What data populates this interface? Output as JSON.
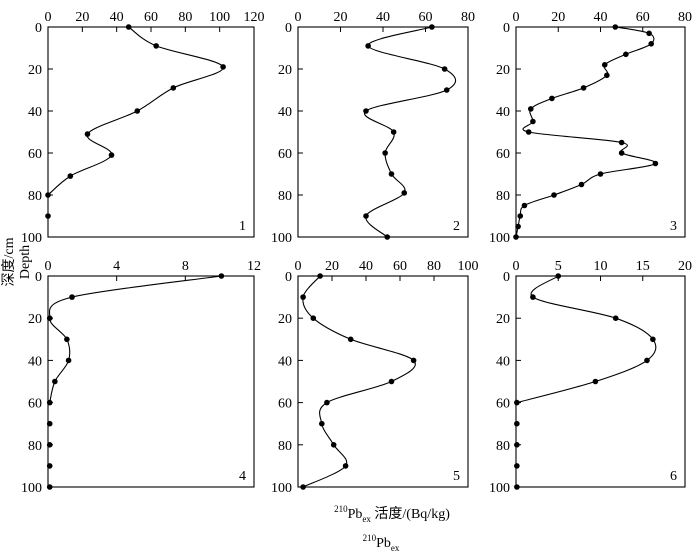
{
  "figure": {
    "y_axis_title": "深度/cm",
    "y_axis_title_en": "Depth",
    "x_axis_title": {
      "superscript": "210",
      "base": "Pb",
      "subscript": "ex",
      "suffix": " 活度/(Bq/kg)"
    },
    "x_axis_title_en": {
      "superscript": "210",
      "base": "Pb",
      "subscript": "ex"
    }
  },
  "chart_data": [
    {
      "type": "line",
      "panel_label": "1",
      "x_ticks": [
        "0",
        "20",
        "40",
        "60",
        "80",
        "100",
        "120"
      ],
      "y_ticks": [
        "0",
        "20",
        "40",
        "60",
        "80",
        "100"
      ],
      "xlim": [
        0,
        120
      ],
      "ylim": [
        0,
        100
      ],
      "y_inverted": true,
      "x_axis_position": "top",
      "series": [
        {
          "x": [
            47,
            63,
            102,
            73,
            52,
            23,
            37,
            13,
            0,
            0
          ],
          "y": [
            0,
            9,
            19,
            29,
            40,
            51,
            61,
            71,
            80,
            90
          ],
          "smooth_through": 8
        }
      ]
    },
    {
      "type": "line",
      "panel_label": "2",
      "x_ticks": [
        "0",
        "20",
        "40",
        "60",
        "80"
      ],
      "y_ticks": [
        "0",
        "20",
        "40",
        "60",
        "80",
        "100"
      ],
      "xlim": [
        0,
        80
      ],
      "ylim": [
        0,
        100
      ],
      "y_inverted": true,
      "x_axis_position": "top",
      "series": [
        {
          "x": [
            63,
            33,
            69,
            70,
            32,
            45,
            41,
            44,
            50,
            32,
            42
          ],
          "y": [
            0,
            9,
            20,
            30,
            40,
            50,
            60,
            70,
            79,
            90,
            100
          ],
          "smooth_through": 10
        }
      ]
    },
    {
      "type": "line",
      "panel_label": "3",
      "x_ticks": [
        "0",
        "20",
        "40",
        "60",
        "80"
      ],
      "y_ticks": [
        "0",
        "20",
        "40",
        "60",
        "80",
        "100"
      ],
      "xlim": [
        0,
        80
      ],
      "ylim": [
        0,
        100
      ],
      "y_inverted": true,
      "x_axis_position": "top",
      "series": [
        {
          "x": [
            47,
            63,
            64,
            52,
            42,
            43,
            32,
            17,
            7,
            8,
            6,
            50,
            50,
            66,
            40,
            31,
            18,
            4,
            2,
            1,
            0
          ],
          "y": [
            0,
            3,
            8,
            13,
            18,
            23,
            29,
            34,
            39,
            45,
            50,
            55,
            60,
            65,
            70,
            75,
            80,
            85,
            90,
            95,
            100
          ],
          "smooth_through": 20
        }
      ]
    },
    {
      "type": "line",
      "panel_label": "4",
      "x_ticks": [
        "0",
        "4",
        "8",
        "12"
      ],
      "y_ticks": [
        "0",
        "20",
        "40",
        "60",
        "80",
        "100"
      ],
      "xlim": [
        0,
        12
      ],
      "ylim": [
        0,
        100
      ],
      "y_inverted": true,
      "x_axis_position": "top",
      "series": [
        {
          "x": [
            10.1,
            1.4,
            0.1,
            1.1,
            1.2,
            0.4,
            0.1,
            0.1,
            0.1,
            0.1,
            0.1
          ],
          "y": [
            0,
            10,
            20,
            30,
            40,
            50,
            60,
            70,
            80,
            90,
            100
          ],
          "smooth_through": 6
        }
      ]
    },
    {
      "type": "line",
      "panel_label": "5",
      "x_ticks": [
        "0",
        "20",
        "40",
        "60",
        "80",
        "100"
      ],
      "y_ticks": [
        "0",
        "20",
        "40",
        "60",
        "80",
        "100"
      ],
      "xlim": [
        0,
        100
      ],
      "ylim": [
        0,
        100
      ],
      "y_inverted": true,
      "x_axis_position": "top",
      "series": [
        {
          "x": [
            13,
            3,
            9,
            31,
            68,
            55,
            17,
            14,
            21,
            28,
            3
          ],
          "y": [
            0,
            10,
            20,
            30,
            40,
            50,
            60,
            70,
            80,
            90,
            100
          ],
          "smooth_through": 10
        }
      ]
    },
    {
      "type": "line",
      "panel_label": "6",
      "x_ticks": [
        "0",
        "5",
        "10",
        "15",
        "20"
      ],
      "y_ticks": [
        "0",
        "20",
        "40",
        "60",
        "80",
        "100"
      ],
      "xlim": [
        0,
        20
      ],
      "ylim": [
        0,
        100
      ],
      "y_inverted": true,
      "x_axis_position": "top",
      "series": [
        {
          "x": [
            5,
            2,
            11.8,
            16.2,
            15.5,
            9.4,
            0.1,
            0.1,
            0.1,
            0.1,
            0.1
          ],
          "y": [
            0,
            10,
            20,
            30,
            40,
            50,
            60,
            70,
            80,
            90,
            100
          ],
          "smooth_through": 6
        }
      ]
    }
  ]
}
